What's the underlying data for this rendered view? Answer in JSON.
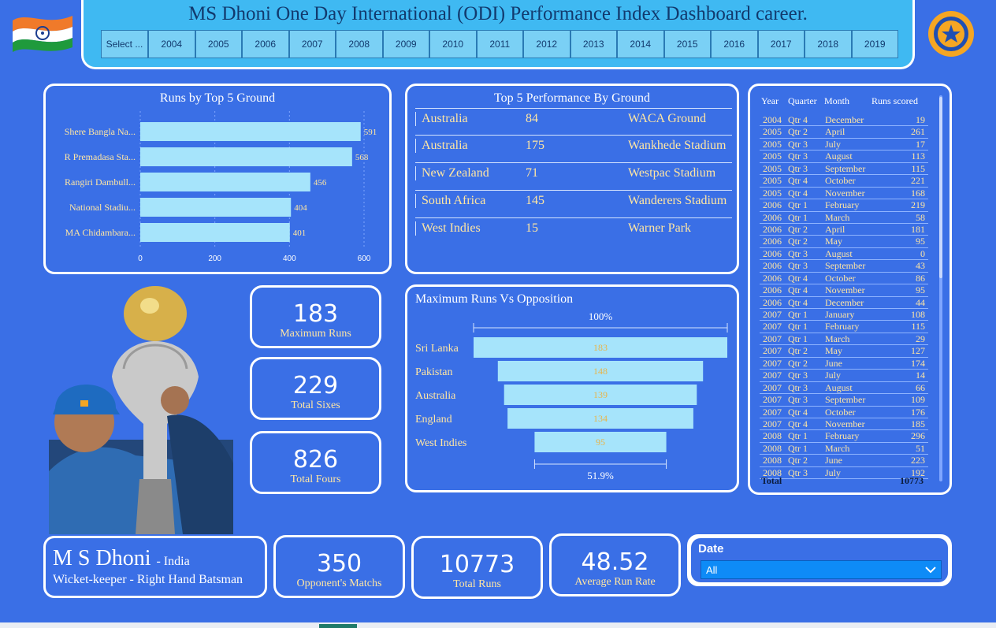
{
  "header": {
    "title": "MS Dhoni One Day International (ODI) Performance Index Dashboard career.",
    "year_buttons": [
      "Select ...",
      "2004",
      "2005",
      "2006",
      "2007",
      "2008",
      "2009",
      "2010",
      "2011",
      "2012",
      "2013",
      "2014",
      "2015",
      "2016",
      "2017",
      "2018",
      "2019"
    ]
  },
  "icons": {
    "flag": "india-flag-icon",
    "emblem": "bcci-emblem-icon"
  },
  "colors": {
    "background": "#3a6fe6",
    "header": "#3fb9f2",
    "bar": "#a6e4fb",
    "accent_text": "#ffe6a3",
    "slicer": "#0e8bf7"
  },
  "bar_chart": {
    "title": "Runs by Top 5 Ground",
    "chart_data": {
      "type": "bar",
      "orientation": "horizontal",
      "categories": [
        "Shere Bangla Na...",
        "R Premadasa Sta...",
        "Rangiri Dambull...",
        "National Stadiu...",
        "MA Chidambara..."
      ],
      "values": [
        591,
        568,
        456,
        404,
        401
      ],
      "xlim": [
        0,
        600
      ],
      "xticks": [
        "0",
        "200",
        "400",
        "600"
      ],
      "grid": true
    }
  },
  "ground_table": {
    "title": "Top 5 Performance By Ground",
    "rows": [
      {
        "country": "Australia",
        "runs": "84",
        "ground": "WACA Ground"
      },
      {
        "country": "Australia",
        "runs": "175",
        "ground": "Wankhede Stadium"
      },
      {
        "country": "New Zealand",
        "runs": "71",
        "ground": "Westpac Stadium"
      },
      {
        "country": "South Africa",
        "runs": "145",
        "ground": "Wanderers Stadium"
      },
      {
        "country": "West Indies",
        "runs": "15",
        "ground": "Warner Park"
      }
    ]
  },
  "year_table": {
    "headers": {
      "year": "Year",
      "quarter": "Quarter",
      "month": "Month",
      "runs": "Runs scored"
    },
    "rows": [
      [
        "2004",
        "Qtr 4",
        "December",
        "19"
      ],
      [
        "2005",
        "Qtr 2",
        "April",
        "261"
      ],
      [
        "2005",
        "Qtr 3",
        "July",
        "17"
      ],
      [
        "2005",
        "Qtr 3",
        "August",
        "113"
      ],
      [
        "2005",
        "Qtr 3",
        "September",
        "115"
      ],
      [
        "2005",
        "Qtr 4",
        "October",
        "221"
      ],
      [
        "2005",
        "Qtr 4",
        "November",
        "168"
      ],
      [
        "2006",
        "Qtr 1",
        "February",
        "219"
      ],
      [
        "2006",
        "Qtr 1",
        "March",
        "58"
      ],
      [
        "2006",
        "Qtr 2",
        "April",
        "181"
      ],
      [
        "2006",
        "Qtr 2",
        "May",
        "95"
      ],
      [
        "2006",
        "Qtr 3",
        "August",
        "0"
      ],
      [
        "2006",
        "Qtr 3",
        "September",
        "43"
      ],
      [
        "2006",
        "Qtr 4",
        "October",
        "86"
      ],
      [
        "2006",
        "Qtr 4",
        "November",
        "95"
      ],
      [
        "2006",
        "Qtr 4",
        "December",
        "44"
      ],
      [
        "2007",
        "Qtr 1",
        "January",
        "108"
      ],
      [
        "2007",
        "Qtr 1",
        "February",
        "115"
      ],
      [
        "2007",
        "Qtr 1",
        "March",
        "29"
      ],
      [
        "2007",
        "Qtr 2",
        "May",
        "127"
      ],
      [
        "2007",
        "Qtr 2",
        "June",
        "174"
      ],
      [
        "2007",
        "Qtr 3",
        "July",
        "14"
      ],
      [
        "2007",
        "Qtr 3",
        "August",
        "66"
      ],
      [
        "2007",
        "Qtr 3",
        "September",
        "109"
      ],
      [
        "2007",
        "Qtr 4",
        "October",
        "176"
      ],
      [
        "2007",
        "Qtr 4",
        "November",
        "185"
      ],
      [
        "2008",
        "Qtr 1",
        "February",
        "296"
      ],
      [
        "2008",
        "Qtr 1",
        "March",
        "51"
      ],
      [
        "2008",
        "Qtr 2",
        "June",
        "223"
      ],
      [
        "2008",
        "Qtr 3",
        "July",
        "192"
      ]
    ],
    "total_label": "Total",
    "total_value": "10773"
  },
  "kpis": {
    "max_runs": {
      "value": "183",
      "label": "Maximum Runs"
    },
    "sixes": {
      "value": "229",
      "label": "Total Sixes"
    },
    "fours": {
      "value": "826",
      "label": "Total Fours"
    },
    "matches": {
      "value": "350",
      "label": "Opponent's Matchs"
    },
    "total_runs": {
      "value": "10773",
      "label": "Total Runs"
    },
    "avg": {
      "value": "48.52",
      "label": "Average Run Rate"
    }
  },
  "funnel": {
    "title": "Maximum Runs Vs Opposition",
    "top_label": "100%",
    "bottom_label": "51.9%",
    "chart_data": {
      "type": "bar",
      "subtype": "funnel",
      "categories": [
        "Sri Lanka",
        "Pakistan",
        "Australia",
        "England",
        "West Indies"
      ],
      "values": [
        183,
        148,
        139,
        134,
        95
      ]
    }
  },
  "player": {
    "name": "M S Dhoni",
    "country": "- India",
    "role": "Wicket-keeper - Right Hand Batsman"
  },
  "slicer": {
    "label": "Date",
    "value": "All"
  }
}
